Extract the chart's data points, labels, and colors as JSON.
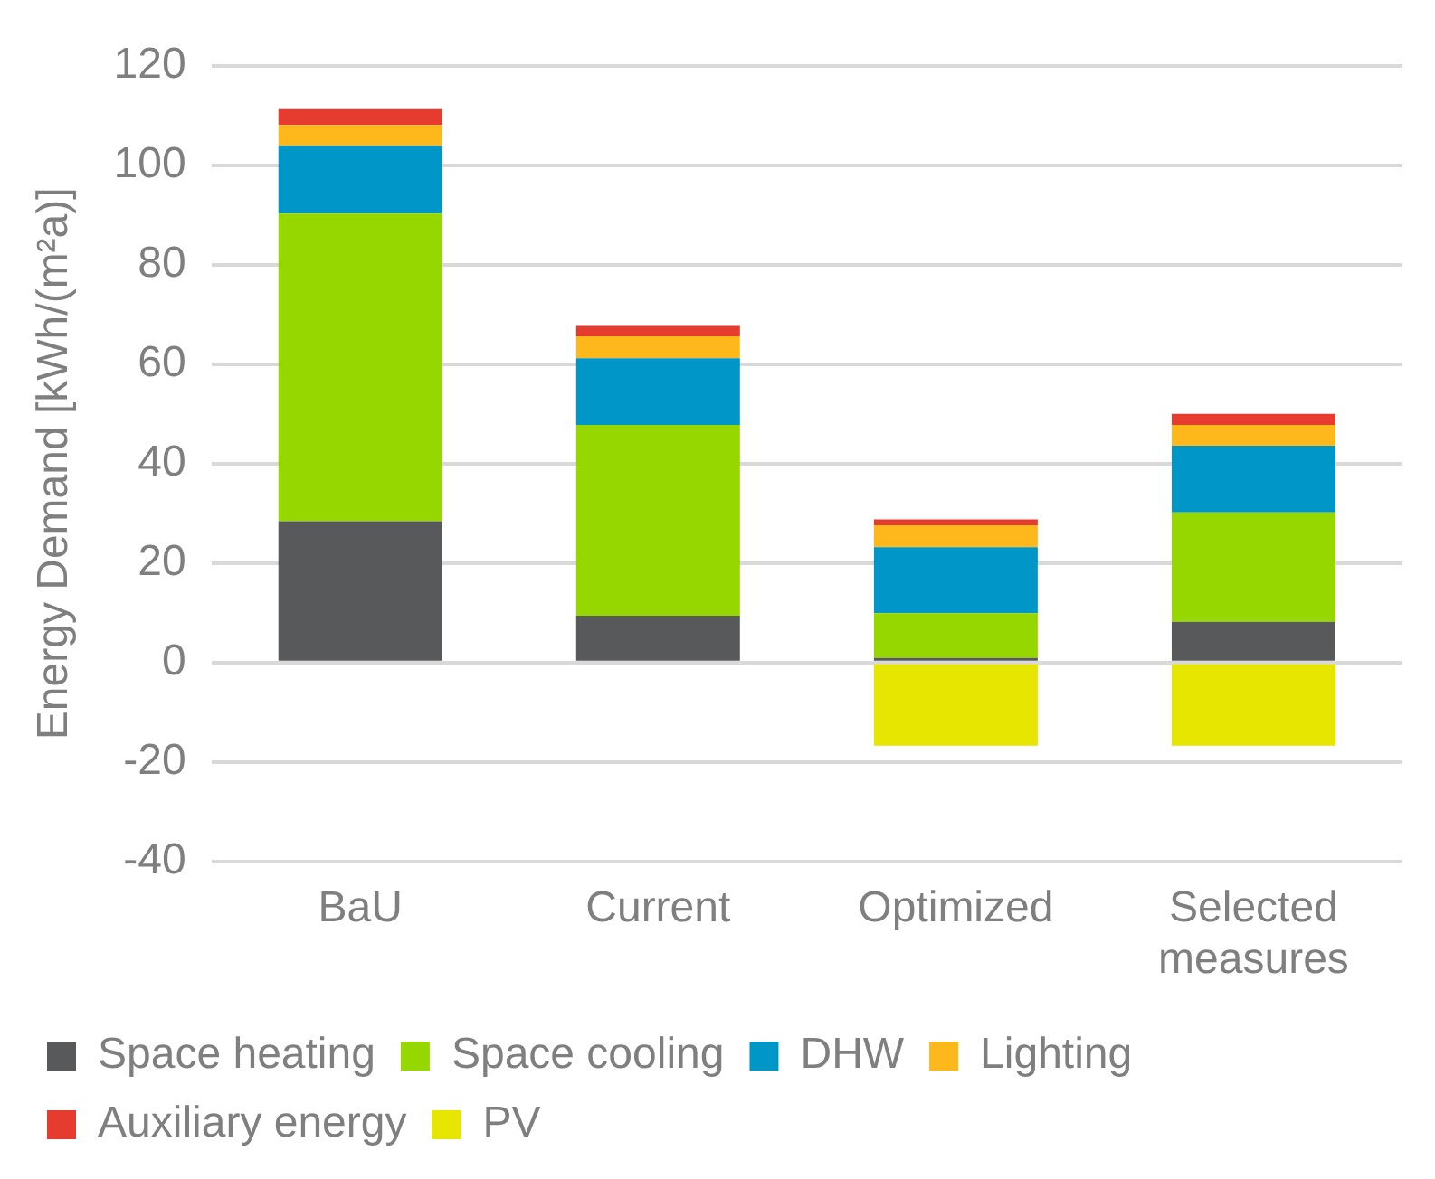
{
  "chart_data": {
    "type": "bar",
    "stacked": true,
    "ylabel": "Energy Demand [kWh/(m²a)]",
    "categories": [
      "BaU",
      "Current",
      "Optimized",
      "Selected measures"
    ],
    "series": [
      {
        "name": "Space heating",
        "color": "#58595b",
        "values": [
          28.4,
          9.4,
          0.9,
          8.2
        ]
      },
      {
        "name": "Space cooling",
        "color": "#97d700",
        "values": [
          61.9,
          38.4,
          9.0,
          22.0
        ]
      },
      {
        "name": "DHW",
        "color": "#0096c8",
        "values": [
          13.6,
          13.4,
          13.3,
          13.4
        ]
      },
      {
        "name": "Lighting",
        "color": "#ffb81c",
        "values": [
          4.2,
          4.4,
          4.4,
          4.2
        ]
      },
      {
        "name": "Auxiliary energy",
        "color": "#e63c2f",
        "values": [
          3.2,
          2.1,
          1.2,
          2.2
        ]
      },
      {
        "name": "PV",
        "color": "#e6e600",
        "values": [
          null,
          null,
          -16.7,
          -16.7
        ]
      }
    ],
    "ylim": [
      -40,
      120
    ],
    "yticks": [
      -40,
      -20,
      0,
      20,
      40,
      60,
      80,
      100,
      120
    ],
    "grid": "y",
    "legend": "bottom"
  }
}
